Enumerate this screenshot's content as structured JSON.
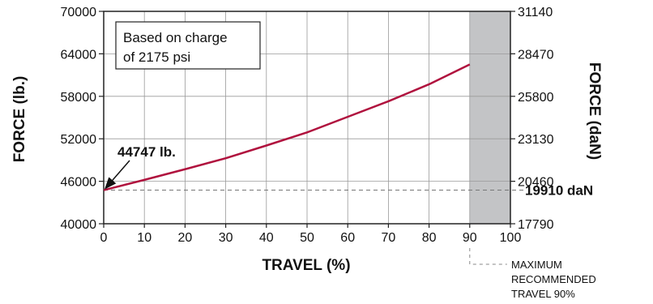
{
  "chart_data": {
    "type": "line",
    "xlabel": "TRAVEL (%)",
    "ylabel": "FORCE (lb.)",
    "y2label": "FORCE (daN)",
    "xlim": [
      0,
      100
    ],
    "ylim": [
      40000,
      70000
    ],
    "x_ticks": [
      0,
      10,
      20,
      30,
      40,
      50,
      60,
      70,
      80,
      90,
      100
    ],
    "y_ticks": [
      40000,
      46000,
      52000,
      58000,
      64000,
      70000
    ],
    "y2_ticks": [
      17790,
      20460,
      23130,
      25800,
      28470,
      31140
    ],
    "grid": true,
    "series": [
      {
        "color": "#b0123e",
        "x": [
          0,
          10,
          20,
          30,
          40,
          50,
          60,
          70,
          80,
          90
        ],
        "y": [
          44747,
          46200,
          47700,
          49250,
          51050,
          52900,
          55100,
          57300,
          59700,
          62500
        ]
      }
    ],
    "shaded_region": {
      "x_from": 90,
      "x_to": 100,
      "color": "#c3c4c6"
    },
    "reference_line": {
      "y": 44747,
      "label": "19910 daN"
    },
    "annotations": {
      "start_point": "44747 lb.",
      "box_line1": "Based on charge",
      "box_line2": "of 2175 psi",
      "max_note_line1": "MAXIMUM",
      "max_note_line2": "RECOMMENDED",
      "max_note_line3": "TRAVEL 90%"
    }
  }
}
